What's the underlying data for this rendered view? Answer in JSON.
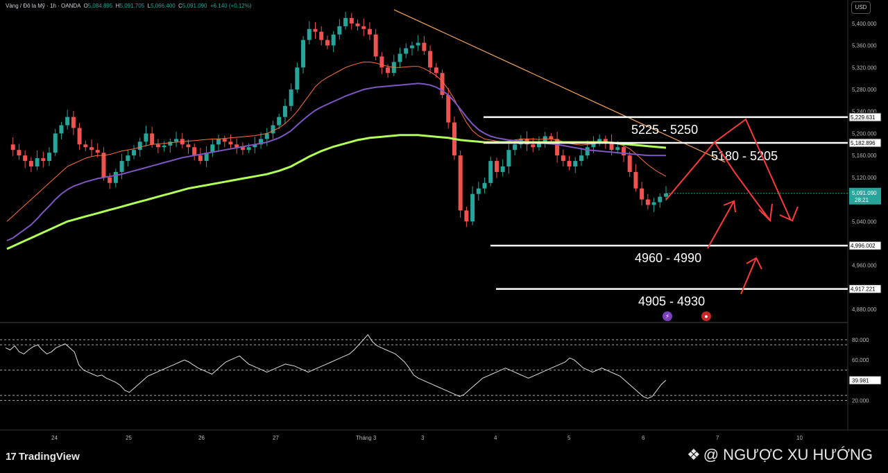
{
  "header": {
    "symbol": "Vàng / Đô la Mỹ · 1h · OANDA",
    "o_label": "O",
    "o": "5,084.895",
    "h_label": "H",
    "h": "5,091.705",
    "l_label": "L",
    "l": "5,066.400",
    "c_label": "C",
    "c": "5,091.090",
    "change": "+6.140 (+0.12%)"
  },
  "currency_button": "USD",
  "branding": {
    "tradingview": "TradingView",
    "watermark": "@ NGƯỢC XU HƯỚNG"
  },
  "chart_data": [
    {
      "type": "line",
      "description_of_axes": "price",
      "ylim": [
        4860,
        5420
      ],
      "y_ticks": [
        "5,400.000",
        "5,360.000",
        "5,320.000",
        "5,280.000",
        "5,240.000",
        "5,200.000",
        "5,160.000",
        "5,120.000",
        "5,080.000",
        "5,040.000",
        "5,000.000",
        "4,960.000",
        "4,920.000",
        "4,880.000"
      ],
      "x_ticks": [
        "24",
        "25",
        "26",
        "27",
        "Tháng 3",
        "3",
        "4",
        "5",
        "6",
        "7",
        "10"
      ],
      "series": [
        {
          "values": [
            5180,
            5170,
            5160,
            5150,
            5140,
            5155,
            5150,
            5165,
            5200,
            5215,
            5230,
            5210,
            5180,
            5175,
            5170,
            5165,
            5120,
            5110,
            5130,
            5150,
            5160,
            5170,
            5185,
            5200,
            5180,
            5175,
            5178,
            5185,
            5190,
            5180,
            5175,
            5160,
            5150,
            5165,
            5180,
            5190,
            5185,
            5180,
            5175,
            5170,
            5175,
            5180,
            5190,
            5200,
            5215,
            5230,
            5250,
            5280,
            5320,
            5370,
            5390,
            5385,
            5370,
            5360,
            5380,
            5395,
            5410,
            5400,
            5395,
            5390,
            5380,
            5340,
            5320,
            5310,
            5330,
            5345,
            5355,
            5360,
            5365,
            5350,
            5320,
            5310,
            5270,
            5220,
            5160,
            5060,
            5040,
            5090,
            5100,
            5110,
            5150,
            5130,
            5140,
            5170,
            5180,
            5190,
            5180,
            5175,
            5185,
            5195,
            5190,
            5160,
            5150,
            5140,
            5150,
            5160,
            5175,
            5185,
            5190,
            5185,
            5170,
            5175,
            5160,
            5130,
            5100,
            5080,
            5070,
            5075,
            5085,
            5091
          ]
        },
        {
          "values": [
            5040,
            5050,
            5060,
            5070,
            5080,
            5090,
            5100,
            5110,
            5120,
            5130,
            5140,
            5145,
            5150,
            5155,
            5158,
            5160,
            5160,
            5162,
            5165,
            5168,
            5170,
            5172,
            5175,
            5178,
            5180,
            5181,
            5182,
            5183,
            5184,
            5185,
            5186,
            5187,
            5188,
            5189,
            5190,
            5190,
            5191,
            5192,
            5193,
            5194,
            5195,
            5196,
            5198,
            5200,
            5205,
            5210,
            5218,
            5228,
            5240,
            5255,
            5270,
            5285,
            5295,
            5302,
            5308,
            5314,
            5320,
            5324,
            5327,
            5330,
            5330,
            5328,
            5325,
            5322,
            5320,
            5320,
            5321,
            5322,
            5322,
            5318,
            5312,
            5305,
            5295,
            5280,
            5262,
            5240,
            5220,
            5205,
            5196,
            5190,
            5188,
            5186,
            5185,
            5186,
            5188,
            5190,
            5190,
            5190,
            5189,
            5190,
            5190,
            5188,
            5185,
            5182,
            5180,
            5179,
            5180,
            5181,
            5183,
            5184,
            5182,
            5181,
            5178,
            5172,
            5163,
            5153,
            5143,
            5135,
            5128,
            5122
          ]
        },
        {
          "values": [
            5005,
            5010,
            5018,
            5026,
            5034,
            5045,
            5057,
            5068,
            5080,
            5090,
            5098,
            5104,
            5108,
            5112,
            5115,
            5118,
            5120,
            5122,
            5124,
            5126,
            5129,
            5132,
            5135,
            5138,
            5141,
            5144,
            5147,
            5150,
            5153,
            5156,
            5158,
            5160,
            5162,
            5164,
            5166,
            5168,
            5170,
            5172,
            5174,
            5176,
            5178,
            5180,
            5182,
            5184,
            5188,
            5192,
            5198,
            5205,
            5215,
            5225,
            5234,
            5242,
            5248,
            5253,
            5258,
            5263,
            5268,
            5272,
            5276,
            5280,
            5282,
            5284,
            5285,
            5286,
            5287,
            5288,
            5289,
            5290,
            5291,
            5290,
            5288,
            5284,
            5278,
            5270,
            5258,
            5244,
            5230,
            5217,
            5207,
            5200,
            5195,
            5192,
            5190,
            5188,
            5187,
            5186,
            5185,
            5184,
            5183,
            5182,
            5181,
            5180,
            5178,
            5176,
            5174,
            5172,
            5170,
            5169,
            5168,
            5167,
            5166,
            5165,
            5164,
            5163,
            5162,
            5161,
            5160,
            5160,
            5160,
            5160
          ]
        },
        {
          "values": [
            4990,
            4995,
            5000,
            5005,
            5010,
            5015,
            5020,
            5025,
            5030,
            5035,
            5040,
            5043,
            5046,
            5049,
            5052,
            5055,
            5058,
            5061,
            5064,
            5067,
            5070,
            5073,
            5076,
            5079,
            5082,
            5085,
            5088,
            5091,
            5094,
            5097,
            5100,
            5102,
            5104,
            5106,
            5108,
            5110,
            5112,
            5114,
            5116,
            5118,
            5120,
            5122,
            5124,
            5126,
            5129,
            5132,
            5136,
            5140,
            5146,
            5152,
            5158,
            5163,
            5168,
            5172,
            5176,
            5179,
            5182,
            5185,
            5188,
            5190,
            5192,
            5193,
            5194,
            5195,
            5196,
            5197,
            5197,
            5197,
            5197,
            5196,
            5195,
            5194,
            5193,
            5192,
            5190,
            5188,
            5187,
            5186,
            5185,
            5184,
            5184,
            5184,
            5184,
            5184,
            5184,
            5184,
            5184,
            5184,
            5184,
            5184,
            5184,
            5184,
            5184,
            5184,
            5184,
            5184,
            5184,
            5184,
            5184,
            5184,
            5183,
            5182,
            5181,
            5180,
            5179,
            5178,
            5177,
            5176,
            5175,
            5174
          ]
        }
      ],
      "price_labels": [
        {
          "value": 5229.631,
          "text": "5,229.631",
          "level_label": "5225 - 5250"
        },
        {
          "value": 5182.896,
          "text": "5,182.896",
          "level_label": "5180 - 5205"
        },
        {
          "value": 4996.002,
          "text": "4,996.002",
          "level_label": "4960 - 4990"
        },
        {
          "value": 4917.221,
          "text": "4,917.221",
          "level_label": "4905 - 4930"
        }
      ],
      "current_price": {
        "value": 5091.09,
        "text": "5,091.090",
        "timer": "28:21"
      },
      "colors": {
        "up": "#26a69a",
        "down": "#ef5350",
        "ma_fast": "#ff7043",
        "ma_mid": "#7e57c2",
        "ma_slow": "#b2ff59",
        "trendline": "#f4a460",
        "arrows": "#ff3b3b"
      }
    },
    {
      "type": "line",
      "description_of_axes": "oscillator",
      "ylim": [
        10,
        95
      ],
      "y_ticks": [
        "80.000",
        "60.000",
        "20.000"
      ],
      "current_value": "39.981",
      "values": [
        72,
        70,
        74,
        68,
        66,
        70,
        73,
        75,
        70,
        66,
        68,
        72,
        74,
        76,
        72,
        68,
        55,
        50,
        48,
        46,
        44,
        45,
        42,
        40,
        38,
        35,
        30,
        28,
        32,
        36,
        40,
        44,
        46,
        48,
        50,
        52,
        54,
        56,
        58,
        60,
        58,
        55,
        52,
        50,
        48,
        46,
        50,
        54,
        58,
        60,
        62,
        64,
        60,
        56,
        54,
        52,
        50,
        48,
        50,
        52,
        54,
        56,
        55,
        54,
        52,
        50,
        48,
        50,
        52,
        54,
        56,
        58,
        60,
        62,
        64,
        66,
        70,
        75,
        80,
        85,
        78,
        74,
        72,
        70,
        68,
        66,
        62,
        58,
        52,
        45,
        42,
        40,
        38,
        36,
        34,
        32,
        30,
        28,
        26,
        24,
        26,
        30,
        34,
        38,
        42,
        44,
        46,
        48,
        50,
        52,
        50,
        48,
        46,
        44,
        42,
        44,
        46,
        48,
        50,
        52,
        54,
        56,
        58,
        62,
        60,
        56,
        52,
        50,
        48,
        50,
        52,
        50,
        48,
        46,
        44,
        40,
        36,
        32,
        28,
        24,
        22,
        24,
        30,
        36,
        40
      ]
    }
  ]
}
